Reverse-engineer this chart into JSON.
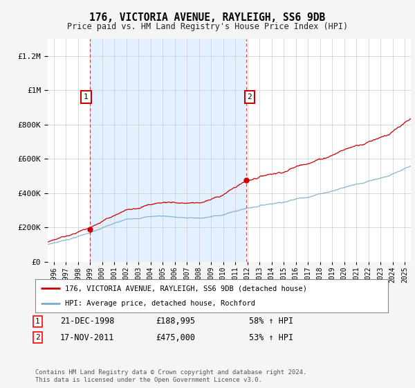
{
  "title": "176, VICTORIA AVENUE, RAYLEIGH, SS6 9DB",
  "subtitle": "Price paid vs. HM Land Registry's House Price Index (HPI)",
  "ylabel_ticks": [
    "£0",
    "£200K",
    "£400K",
    "£600K",
    "£800K",
    "£1M",
    "£1.2M"
  ],
  "ytick_vals": [
    0,
    200000,
    400000,
    600000,
    800000,
    1000000,
    1200000
  ],
  "ylim": [
    0,
    1300000
  ],
  "xlim_start": 1995.5,
  "xlim_end": 2025.5,
  "red_line_color": "#cc0000",
  "blue_line_color": "#7aadcc",
  "shade_color": "#ddeeff",
  "annotation_border_color": "#cc0000",
  "legend_label_red": "176, VICTORIA AVENUE, RAYLEIGH, SS6 9DB (detached house)",
  "legend_label_blue": "HPI: Average price, detached house, Rochford",
  "transaction1_date": "21-DEC-1998",
  "transaction1_price": "£188,995",
  "transaction1_hpi": "58% ↑ HPI",
  "transaction2_date": "17-NOV-2011",
  "transaction2_price": "£475,000",
  "transaction2_hpi": "53% ↑ HPI",
  "footer": "Contains HM Land Registry data © Crown copyright and database right 2024.\nThis data is licensed under the Open Government Licence v3.0.",
  "background_color": "#f5f5f5",
  "plot_bg_color": "#ffffff",
  "grid_color": "#cccccc",
  "vline_color": "#cc0000",
  "t1": 1998.97,
  "t2": 2011.88,
  "price1": 188995,
  "price2": 475000
}
